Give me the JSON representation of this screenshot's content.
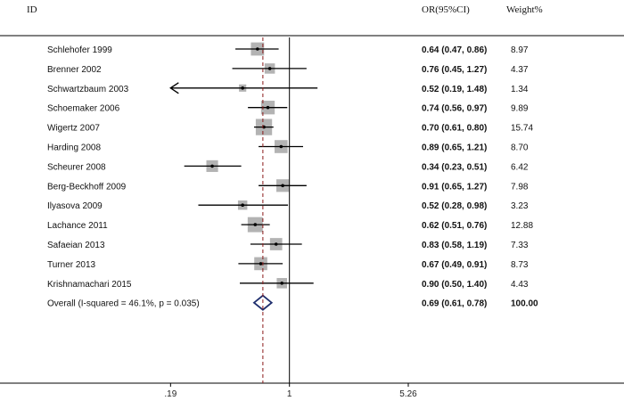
{
  "chart_data": {
    "type": "forest",
    "headers": {
      "id": "ID",
      "or": "OR(95%CI)",
      "weight": "Weight%"
    },
    "scale": "log",
    "xlim": [
      0.165,
      5.26
    ],
    "xticks": [
      {
        "value": 0.19,
        "label": ".19"
      },
      {
        "value": 1,
        "label": "1"
      },
      {
        "value": 5.26,
        "label": "5.26"
      }
    ],
    "null_value": 1,
    "studies": [
      {
        "label": "Schlehofer 1999",
        "or": 0.64,
        "lo": 0.47,
        "hi": 0.86,
        "or_text": "0.64 (0.47, 0.86)",
        "weight": 8.97,
        "weight_text": "8.97",
        "arrow_left": false
      },
      {
        "label": "Brenner 2002",
        "or": 0.76,
        "lo": 0.45,
        "hi": 1.27,
        "or_text": "0.76 (0.45, 1.27)",
        "weight": 4.37,
        "weight_text": "4.37",
        "arrow_left": false
      },
      {
        "label": "Schwartzbaum 2003",
        "or": 0.52,
        "lo": 0.19,
        "hi": 1.48,
        "or_text": "0.52 (0.19, 1.48)",
        "weight": 1.34,
        "weight_text": "1.34",
        "arrow_left": true
      },
      {
        "label": "Schoemaker 2006",
        "or": 0.74,
        "lo": 0.56,
        "hi": 0.97,
        "or_text": "0.74 (0.56, 0.97)",
        "weight": 9.89,
        "weight_text": "9.89",
        "arrow_left": false
      },
      {
        "label": "Wigertz 2007",
        "or": 0.7,
        "lo": 0.61,
        "hi": 0.8,
        "or_text": "0.70 (0.61, 0.80)",
        "weight": 15.74,
        "weight_text": "15.74",
        "arrow_left": false
      },
      {
        "label": "Harding 2008",
        "or": 0.89,
        "lo": 0.65,
        "hi": 1.21,
        "or_text": "0.89 (0.65, 1.21)",
        "weight": 8.7,
        "weight_text": "8.70",
        "arrow_left": false
      },
      {
        "label": "Scheurer 2008",
        "or": 0.34,
        "lo": 0.23,
        "hi": 0.51,
        "or_text": "0.34 (0.23, 0.51)",
        "weight": 6.42,
        "weight_text": "6.42",
        "arrow_left": false
      },
      {
        "label": "Berg-Beckhoff 2009",
        "or": 0.91,
        "lo": 0.65,
        "hi": 1.27,
        "or_text": "0.91 (0.65, 1.27)",
        "weight": 7.98,
        "weight_text": "7.98",
        "arrow_left": false
      },
      {
        "label": "Ilyasova 2009",
        "or": 0.52,
        "lo": 0.28,
        "hi": 0.98,
        "or_text": "0.52 (0.28, 0.98)",
        "weight": 3.23,
        "weight_text": "3.23",
        "arrow_left": false
      },
      {
        "label": "Lachance 2011",
        "or": 0.62,
        "lo": 0.51,
        "hi": 0.76,
        "or_text": "0.62 (0.51, 0.76)",
        "weight": 12.88,
        "weight_text": "12.88",
        "arrow_left": false
      },
      {
        "label": "Safaeian 2013",
        "or": 0.83,
        "lo": 0.58,
        "hi": 1.19,
        "or_text": "0.83 (0.58, 1.19)",
        "weight": 7.33,
        "weight_text": "7.33",
        "arrow_left": false
      },
      {
        "label": "Turner 2013",
        "or": 0.67,
        "lo": 0.49,
        "hi": 0.91,
        "or_text": "0.67 (0.49, 0.91)",
        "weight": 8.73,
        "weight_text": "8.73",
        "arrow_left": false
      },
      {
        "label": "Krishnamachari 2015",
        "or": 0.9,
        "lo": 0.5,
        "hi": 1.4,
        "or_text": "0.90 (0.50, 1.40)",
        "weight": 4.43,
        "weight_text": "4.43",
        "arrow_left": false
      }
    ],
    "overall": {
      "label": "Overall  (I-squared = 46.1%, p = 0.035)",
      "or": 0.69,
      "lo": 0.61,
      "hi": 0.78,
      "or_text": "0.69 (0.61, 0.78)",
      "weight_text": "100.00"
    },
    "colors": {
      "box": "#b3b3b3",
      "line": "#000000",
      "diamond": "#1f2f6e",
      "overall_line": "#8b1a1a"
    }
  }
}
